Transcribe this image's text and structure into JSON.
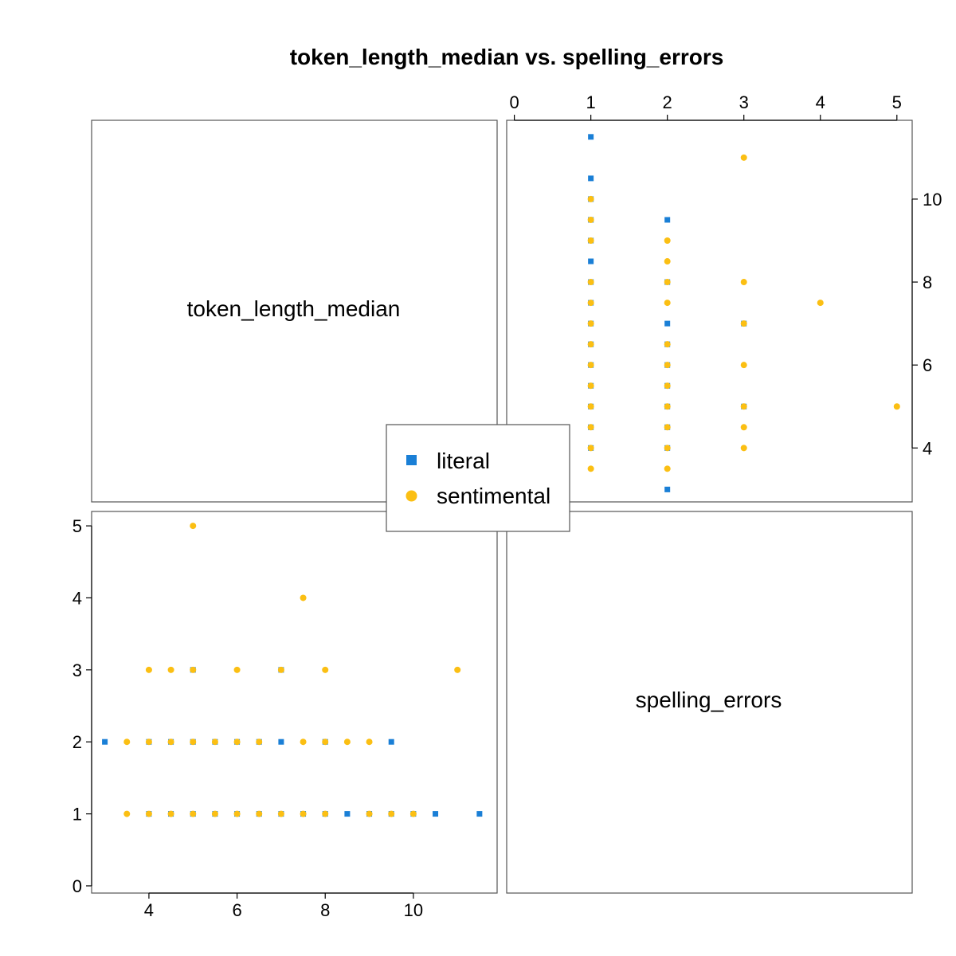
{
  "chart_data": {
    "type": "scatter",
    "title": "token_length_median vs. spelling_errors",
    "variables": [
      "token_length_median",
      "spelling_errors"
    ],
    "legend": {
      "placement": "center",
      "entries": [
        {
          "name": "literal",
          "color": "#1a7fd6",
          "marker": "square"
        },
        {
          "name": "sentimental",
          "color": "#fbbf13",
          "marker": "circle"
        }
      ]
    },
    "axes": {
      "token_length_median": {
        "range": [
          2.7,
          11.9
        ],
        "ticks": [
          4,
          6,
          8,
          10
        ]
      },
      "spelling_errors": {
        "range": [
          -0.1,
          5.2
        ],
        "ticks": [
          0,
          1,
          2,
          3,
          4,
          5
        ]
      }
    },
    "series": [
      {
        "name": "literal",
        "points": [
          {
            "token_length_median": 11.5,
            "spelling_errors": 1
          },
          {
            "token_length_median": 10.5,
            "spelling_errors": 1
          },
          {
            "token_length_median": 10,
            "spelling_errors": 1
          },
          {
            "token_length_median": 9.5,
            "spelling_errors": 1
          },
          {
            "token_length_median": 9,
            "spelling_errors": 1
          },
          {
            "token_length_median": 8.5,
            "spelling_errors": 1
          },
          {
            "token_length_median": 8,
            "spelling_errors": 1
          },
          {
            "token_length_median": 7.5,
            "spelling_errors": 1
          },
          {
            "token_length_median": 7,
            "spelling_errors": 1
          },
          {
            "token_length_median": 6.5,
            "spelling_errors": 1
          },
          {
            "token_length_median": 6,
            "spelling_errors": 1
          },
          {
            "token_length_median": 5.5,
            "spelling_errors": 1
          },
          {
            "token_length_median": 5,
            "spelling_errors": 1
          },
          {
            "token_length_median": 4.5,
            "spelling_errors": 1
          },
          {
            "token_length_median": 4,
            "spelling_errors": 1
          },
          {
            "token_length_median": 3,
            "spelling_errors": 2
          },
          {
            "token_length_median": 4,
            "spelling_errors": 2
          },
          {
            "token_length_median": 4.5,
            "spelling_errors": 2
          },
          {
            "token_length_median": 5,
            "spelling_errors": 2
          },
          {
            "token_length_median": 5.5,
            "spelling_errors": 2
          },
          {
            "token_length_median": 6,
            "spelling_errors": 2
          },
          {
            "token_length_median": 6.5,
            "spelling_errors": 2
          },
          {
            "token_length_median": 7,
            "spelling_errors": 2
          },
          {
            "token_length_median": 8,
            "spelling_errors": 2
          },
          {
            "token_length_median": 9.5,
            "spelling_errors": 2
          },
          {
            "token_length_median": 5,
            "spelling_errors": 3
          },
          {
            "token_length_median": 7,
            "spelling_errors": 3
          }
        ]
      },
      {
        "name": "sentimental",
        "points": [
          {
            "token_length_median": 3.5,
            "spelling_errors": 1
          },
          {
            "token_length_median": 4,
            "spelling_errors": 1
          },
          {
            "token_length_median": 4.5,
            "spelling_errors": 1
          },
          {
            "token_length_median": 5,
            "spelling_errors": 1
          },
          {
            "token_length_median": 5.5,
            "spelling_errors": 1
          },
          {
            "token_length_median": 6,
            "spelling_errors": 1
          },
          {
            "token_length_median": 6.5,
            "spelling_errors": 1
          },
          {
            "token_length_median": 7,
            "spelling_errors": 1
          },
          {
            "token_length_median": 7.5,
            "spelling_errors": 1
          },
          {
            "token_length_median": 8,
            "spelling_errors": 1
          },
          {
            "token_length_median": 9,
            "spelling_errors": 1
          },
          {
            "token_length_median": 9.5,
            "spelling_errors": 1
          },
          {
            "token_length_median": 10,
            "spelling_errors": 1
          },
          {
            "token_length_median": 3.5,
            "spelling_errors": 2
          },
          {
            "token_length_median": 4,
            "spelling_errors": 2
          },
          {
            "token_length_median": 4.5,
            "spelling_errors": 2
          },
          {
            "token_length_median": 5,
            "spelling_errors": 2
          },
          {
            "token_length_median": 5.5,
            "spelling_errors": 2
          },
          {
            "token_length_median": 6,
            "spelling_errors": 2
          },
          {
            "token_length_median": 6.5,
            "spelling_errors": 2
          },
          {
            "token_length_median": 7.5,
            "spelling_errors": 2
          },
          {
            "token_length_median": 8,
            "spelling_errors": 2
          },
          {
            "token_length_median": 8.5,
            "spelling_errors": 2
          },
          {
            "token_length_median": 9,
            "spelling_errors": 2
          },
          {
            "token_length_median": 4,
            "spelling_errors": 3
          },
          {
            "token_length_median": 4.5,
            "spelling_errors": 3
          },
          {
            "token_length_median": 5,
            "spelling_errors": 3
          },
          {
            "token_length_median": 6,
            "spelling_errors": 3
          },
          {
            "token_length_median": 7,
            "spelling_errors": 3
          },
          {
            "token_length_median": 8,
            "spelling_errors": 3
          },
          {
            "token_length_median": 11,
            "spelling_errors": 3
          },
          {
            "token_length_median": 7.5,
            "spelling_errors": 4
          },
          {
            "token_length_median": 5,
            "spelling_errors": 5
          }
        ]
      }
    ]
  }
}
